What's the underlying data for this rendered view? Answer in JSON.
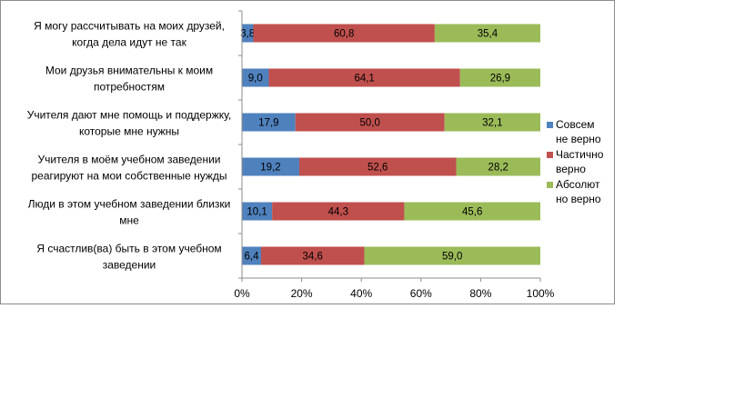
{
  "chart_data": {
    "type": "bar",
    "orientation": "horizontal",
    "stacking": "percent",
    "categories": [
      [
        "Я могу рассчитывать на моих друзей,",
        "когда дела идут не так"
      ],
      [
        "Мои друзья внимательны к моим",
        "потребностям"
      ],
      [
        "Учителя  дают мне помощь и поддержку,",
        "которые мне нужны"
      ],
      [
        "Учителя в моём учебном заведении",
        "реагируют на мои собственные нужды"
      ],
      [
        "Люди в этом учебном заведении близки",
        "мне"
      ],
      [
        "Я счастлив(ва) быть в этом учебном",
        "заведении"
      ]
    ],
    "series": [
      {
        "name": [
          "Совсем",
          "не верно"
        ],
        "color": "#4f81bd",
        "values": [
          3.8,
          9.0,
          17.9,
          19.2,
          10.1,
          6.4
        ],
        "labels": [
          "3,8",
          "9,0",
          "17,9",
          "19,2",
          "10,1",
          "6,4"
        ]
      },
      {
        "name": [
          "Частично",
          "верно"
        ],
        "color": "#c0504d",
        "values": [
          60.8,
          64.1,
          50.0,
          52.6,
          44.3,
          34.6
        ],
        "labels": [
          "60,8",
          "64,1",
          "50,0",
          "52,6",
          "44,3",
          "34,6"
        ]
      },
      {
        "name": [
          "Абсолют",
          "но верно"
        ],
        "color": "#9bbb59",
        "values": [
          35.4,
          26.9,
          32.1,
          28.2,
          45.6,
          59.0
        ],
        "labels": [
          "35,4",
          "26,9",
          "32,1",
          "28,2",
          "45,6",
          "59,0"
        ]
      }
    ],
    "x_ticks": [
      "0%",
      "20%",
      "40%",
      "60%",
      "80%",
      "100%"
    ],
    "xlim": [
      0,
      100
    ],
    "grid": false,
    "legend": "right"
  }
}
